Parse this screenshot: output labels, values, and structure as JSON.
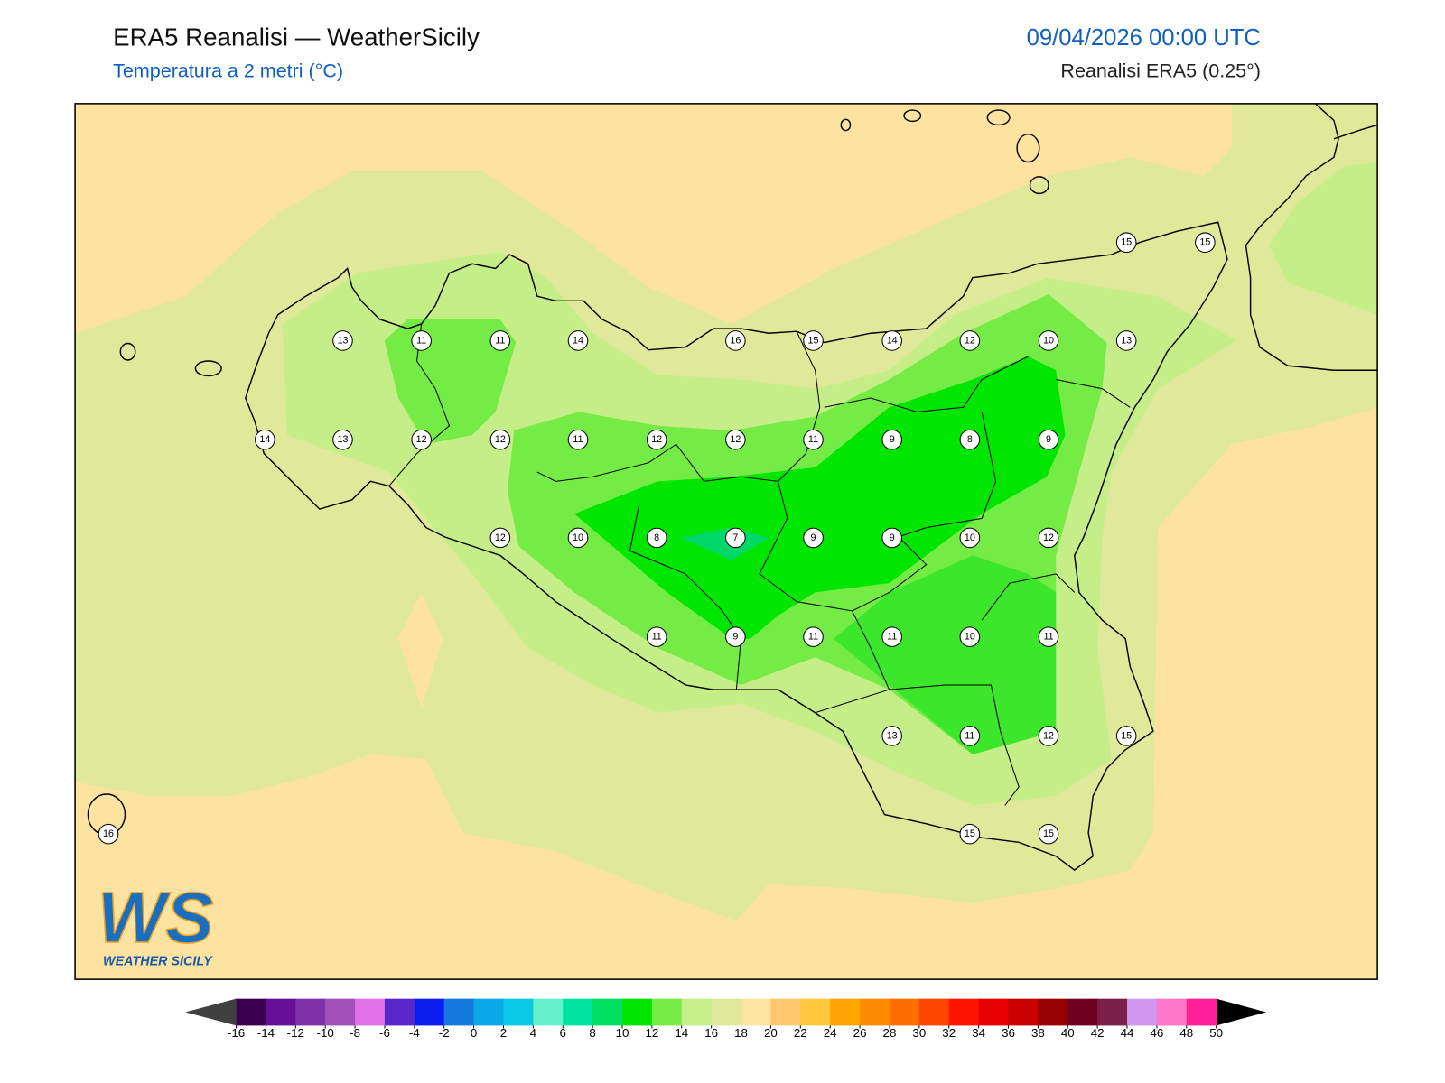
{
  "header": {
    "title": "ERA5 Reanalisi — WeatherSicily",
    "subtitle": "Temperatura a 2 metri (°C)",
    "datetime": "09/04/2026 00:00 UTC",
    "source": "Reanalisi ERA5 (0.25°)"
  },
  "stations": [
    15,
    15,
    13,
    11,
    11,
    14,
    16,
    15,
    14,
    12,
    10,
    13,
    14,
    13,
    12,
    12,
    11,
    12,
    12,
    11,
    9,
    8,
    9,
    12,
    10,
    8,
    7,
    9,
    9,
    10,
    12,
    11,
    9,
    11,
    11,
    10,
    11,
    13,
    11,
    12,
    15,
    16,
    15,
    15
  ],
  "logo": {
    "mark": "WS",
    "name": "WEATHER SICILY"
  },
  "colorbar": {
    "ticks": [
      -16,
      -14,
      -12,
      -10,
      -8,
      -6,
      -4,
      -2,
      0,
      2,
      4,
      6,
      8,
      10,
      12,
      14,
      16,
      18,
      20,
      22,
      24,
      26,
      28,
      30,
      32,
      34,
      36,
      38,
      40,
      42,
      44,
      46,
      48,
      50
    ],
    "colors": [
      "#3c0050",
      "#66109a",
      "#8030a8",
      "#a050b8",
      "#e070e8",
      "#5a28c8",
      "#0a1ef0",
      "#1478dc",
      "#0aa8e6",
      "#0ac8e6",
      "#64f0c8",
      "#00e6a0",
      "#00e060",
      "#00e600",
      "#75ec45",
      "#c5ef88",
      "#e0e89a",
      "#ffe4a0",
      "#fdc86e",
      "#fdc83c",
      "#ffa500",
      "#ff8c00",
      "#ff6e00",
      "#ff4600",
      "#ff1400",
      "#e60000",
      "#c80000",
      "#960000",
      "#6e0020",
      "#7a2048",
      "#d096f0",
      "#ff78c8",
      "#ff1e96",
      "#808080",
      "#3c3c3c"
    ],
    "under": "#404040",
    "over": "#000000"
  }
}
